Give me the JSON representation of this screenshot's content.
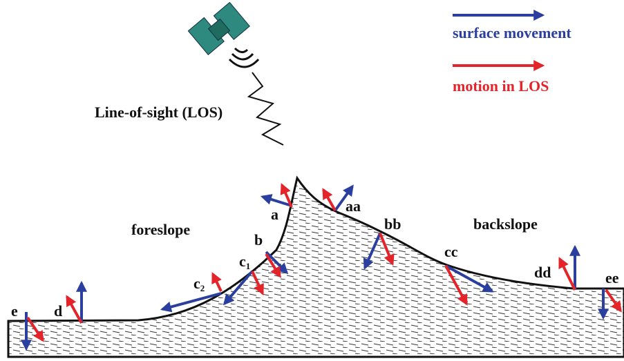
{
  "legend": {
    "surface": "surface movement",
    "los": "motion in LOS"
  },
  "satellite_label": "Line-of-sight (LOS)",
  "regions": {
    "foreslope": "foreslope",
    "backslope": "backslope"
  },
  "points": {
    "e": "e",
    "d": "d",
    "c2": {
      "label": "c",
      "sub": "2"
    },
    "c1": {
      "label": "c",
      "sub": "1"
    },
    "b": "b",
    "a": "a",
    "aa": "aa",
    "bb": "bb",
    "cc": "cc",
    "dd": "dd",
    "ee": "ee"
  }
}
